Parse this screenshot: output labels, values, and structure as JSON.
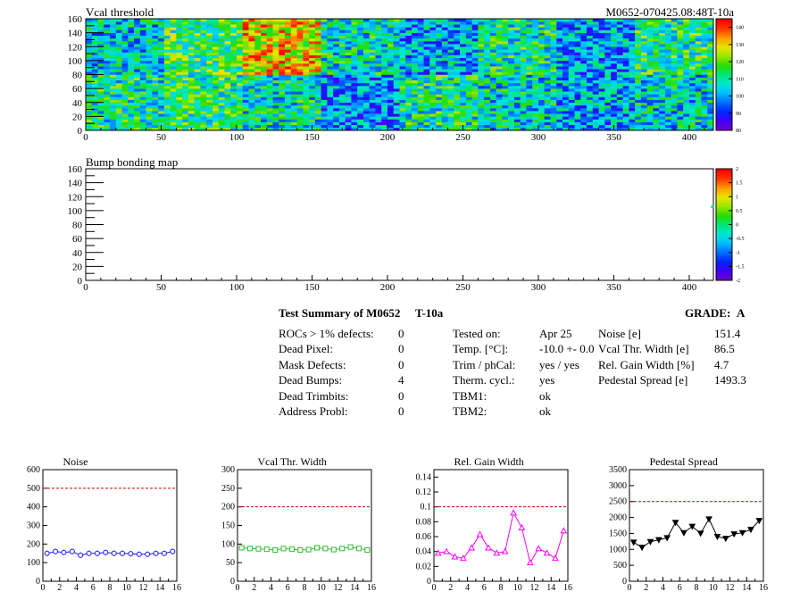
{
  "vcal_map": {
    "title": "Vcal threshold",
    "module_label": "M0652-070425.08:48T-10a",
    "x_ticks": [
      "0",
      "50",
      "100",
      "150",
      "200",
      "250",
      "300",
      "350",
      "400"
    ],
    "y_ticks": [
      "0",
      "20",
      "40",
      "60",
      "80",
      "100",
      "120",
      "140",
      "160"
    ],
    "colorbar_ticks": [
      "80",
      "90",
      "100",
      "110",
      "120",
      "130",
      "140"
    ]
  },
  "bump_map": {
    "title": "Bump bonding map",
    "x_ticks": [
      "0",
      "50",
      "100",
      "150",
      "200",
      "250",
      "300",
      "350",
      "400"
    ],
    "y_ticks": [
      "0",
      "20",
      "40",
      "60",
      "80",
      "100",
      "120",
      "140",
      "160"
    ],
    "colorbar_ticks": [
      "-2",
      "-1.5",
      "-1",
      "-0.5",
      "0",
      "0.5",
      "1",
      "1.5",
      "2"
    ]
  },
  "summary": {
    "heading": "Test Summary of M0652",
    "temp_tag": "T-10a",
    "grade_label": "GRADE:",
    "grade": "A",
    "defects": [
      {
        "label": "ROCs > 1% defects:",
        "value": "0"
      },
      {
        "label": "Dead Pixel:",
        "value": "0"
      },
      {
        "label": "Mask Defects:",
        "value": "0"
      },
      {
        "label": "Dead Bumps:",
        "value": "4"
      },
      {
        "label": "Dead Trimbits:",
        "value": "0"
      },
      {
        "label": "Address Probl:",
        "value": "0"
      }
    ],
    "conditions": [
      {
        "label": "Tested on:",
        "value": "Apr 25"
      },
      {
        "label": "Temp. [°C]:",
        "value": "-10.0 +- 0.0"
      },
      {
        "label": "Trim / phCal:",
        "value": "yes / yes"
      },
      {
        "label": "Therm. cycl.:",
        "value": "yes"
      },
      {
        "label": "TBM1:",
        "value": "ok"
      },
      {
        "label": "TBM2:",
        "value": "ok"
      }
    ],
    "performance": [
      {
        "label": "Noise [e]",
        "value": "151.4"
      },
      {
        "label": "Vcal Thr. Width [e]",
        "value": "86.5"
      },
      {
        "label": "Rel. Gain Width [%]",
        "value": "4.7"
      },
      {
        "label": "Pedestal Spread [e]",
        "value": "1493.3"
      }
    ]
  },
  "chart_data": [
    {
      "type": "heatmap",
      "title": "Vcal threshold",
      "xlim": [
        0,
        416
      ],
      "ylim": [
        0,
        160
      ],
      "zlim": [
        80,
        145
      ],
      "note_rows": "values given per 52-column ROC block, lower row (y 0-80) and upper row (y 80-160)",
      "x_blocks": [
        [
          0,
          52
        ],
        [
          52,
          104
        ],
        [
          104,
          156
        ],
        [
          156,
          208
        ],
        [
          208,
          260
        ],
        [
          260,
          312
        ],
        [
          312,
          364
        ],
        [
          364,
          416
        ]
      ],
      "upper_row_mean": [
        105,
        115,
        130,
        108,
        100,
        110,
        100,
        112
      ],
      "lower_row_mean": [
        110,
        113,
        108,
        98,
        110,
        106,
        100,
        106
      ],
      "colorbar": [
        80,
        90,
        100,
        110,
        120,
        130,
        140
      ]
    },
    {
      "type": "heatmap",
      "title": "Bump bonding map",
      "xlim": [
        0,
        416
      ],
      "ylim": [
        0,
        160
      ],
      "zlim": [
        -2,
        2
      ],
      "points": [
        [
          415,
          106,
          0
        ]
      ],
      "colorbar": [
        -2,
        -1.5,
        -1,
        -0.5,
        0,
        0.5,
        1,
        1.5,
        2
      ]
    },
    {
      "type": "line",
      "title": "Noise",
      "x": [
        0,
        1,
        2,
        3,
        4,
        5,
        6,
        7,
        8,
        9,
        10,
        11,
        12,
        13,
        14,
        15
      ],
      "values": [
        150,
        160,
        155,
        160,
        140,
        150,
        150,
        155,
        150,
        150,
        148,
        145,
        145,
        150,
        150,
        160
      ],
      "errors": [
        15,
        15,
        15,
        15,
        15,
        15,
        15,
        15,
        15,
        15,
        15,
        15,
        15,
        15,
        15,
        15
      ],
      "limit": 500,
      "xlim": [
        0,
        16
      ],
      "ylim": [
        0,
        600
      ],
      "x_ticks": [
        0,
        2,
        4,
        6,
        8,
        10,
        12,
        14,
        16
      ],
      "y_ticks": [
        0,
        100,
        200,
        300,
        400,
        500,
        600
      ],
      "color": "#1a1aff",
      "marker": "circle-open"
    },
    {
      "type": "line",
      "title": "Vcal Thr. Width",
      "x": [
        0,
        1,
        2,
        3,
        4,
        5,
        6,
        7,
        8,
        9,
        10,
        11,
        12,
        13,
        14,
        15
      ],
      "values": [
        90,
        88,
        87,
        86,
        84,
        88,
        86,
        84,
        85,
        90,
        88,
        85,
        88,
        92,
        88,
        84
      ],
      "limit": 200,
      "xlim": [
        0,
        16
      ],
      "ylim": [
        0,
        300
      ],
      "x_ticks": [
        0,
        2,
        4,
        6,
        8,
        10,
        12,
        14,
        16
      ],
      "y_ticks": [
        0,
        50,
        100,
        150,
        200,
        250,
        300
      ],
      "color": "#33bb33",
      "marker": "square-open"
    },
    {
      "type": "line",
      "title": "Rel. Gain Width",
      "x": [
        0,
        1,
        2,
        3,
        4,
        5,
        6,
        7,
        8,
        9,
        10,
        11,
        12,
        13,
        14,
        15
      ],
      "values": [
        0.038,
        0.04,
        0.033,
        0.031,
        0.045,
        0.063,
        0.045,
        0.038,
        0.04,
        0.092,
        0.072,
        0.025,
        0.044,
        0.038,
        0.031,
        0.068
      ],
      "limit": 0.1,
      "xlim": [
        0,
        16
      ],
      "ylim": [
        0,
        0.15
      ],
      "x_ticks": [
        0,
        2,
        4,
        6,
        8,
        10,
        12,
        14,
        16
      ],
      "y_ticks": [
        0,
        0.02,
        0.04,
        0.06,
        0.08,
        0.1,
        0.12,
        0.14
      ],
      "color": "#ff00ff",
      "marker": "triangle-open"
    },
    {
      "type": "line",
      "title": "Pedestal Spread",
      "x": [
        0,
        1,
        2,
        3,
        4,
        5,
        6,
        7,
        8,
        9,
        10,
        11,
        12,
        13,
        14,
        15
      ],
      "values": [
        1220,
        1060,
        1240,
        1300,
        1360,
        1840,
        1520,
        1720,
        1500,
        1950,
        1400,
        1340,
        1480,
        1520,
        1620,
        1900
      ],
      "limit": 2500,
      "xlim": [
        0,
        16
      ],
      "ylim": [
        0,
        3500
      ],
      "x_ticks": [
        0,
        2,
        4,
        6,
        8,
        10,
        12,
        14,
        16
      ],
      "y_ticks": [
        0,
        500,
        1000,
        1500,
        2000,
        2500,
        3000,
        3500
      ],
      "color": "#000000",
      "marker": "triangle-filled"
    }
  ]
}
